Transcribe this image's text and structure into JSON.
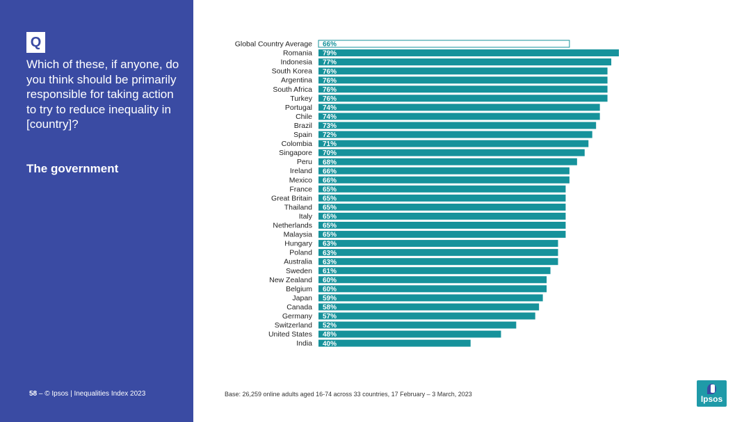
{
  "colors": {
    "panel": "#3a4ba3",
    "bar": "#16929b",
    "highlight_outline": "#16929b",
    "highlight_fill": "#ffffff"
  },
  "left_panel": {
    "badge": "Q",
    "question": "Which of these, if anyone, do you think should be primarily responsible for taking action to try to reduce inequality in [country]?",
    "answer": "The government",
    "page_number": "58",
    "footer": "–  © Ipsos | Inequalities Index 2023"
  },
  "base_note": "Base: 26,259 online adults aged 16-74 across 33 countries, 17 February – 3 March, 2023",
  "logo": {
    "text": "Ipsos",
    "icon": "ipsos-logo-icon"
  },
  "chart_data": {
    "type": "bar",
    "orientation": "horizontal",
    "title": "",
    "xlabel": "",
    "ylabel": "",
    "xlim": [
      0,
      79
    ],
    "grid": false,
    "legend": "none",
    "highlight_category": "Global Country Average",
    "categories": [
      "Global Country Average",
      "Romania",
      "Indonesia",
      "South Korea",
      "Argentina",
      "South Africa",
      "Turkey",
      "Portugal",
      "Chile",
      "Brazil",
      "Spain",
      "Colombia",
      "Singapore",
      "Peru",
      "Ireland",
      "Mexico",
      "France",
      "Great Britain",
      "Thailand",
      "Italy",
      "Netherlands",
      "Malaysia",
      "Hungary",
      "Poland",
      "Australia",
      "Sweden",
      "New Zealand",
      "Belgium",
      "Japan",
      "Canada",
      "Germany",
      "Switzerland",
      "United States",
      "India"
    ],
    "values": [
      66,
      79,
      77,
      76,
      76,
      76,
      76,
      74,
      74,
      73,
      72,
      71,
      70,
      68,
      66,
      66,
      65,
      65,
      65,
      65,
      65,
      65,
      63,
      63,
      63,
      61,
      60,
      60,
      59,
      58,
      57,
      52,
      48,
      40
    ],
    "labels": [
      "66%",
      "79%",
      "77%",
      "76%",
      "76%",
      "76%",
      "76%",
      "74%",
      "74%",
      "73%",
      "72%",
      "71%",
      "70%",
      "68%",
      "66%",
      "66%",
      "65%",
      "65%",
      "65%",
      "65%",
      "65%",
      "65%",
      "63%",
      "63%",
      "63%",
      "61%",
      "60%",
      "60%",
      "59%",
      "58%",
      "57%",
      "52%",
      "48%",
      "40%"
    ]
  }
}
